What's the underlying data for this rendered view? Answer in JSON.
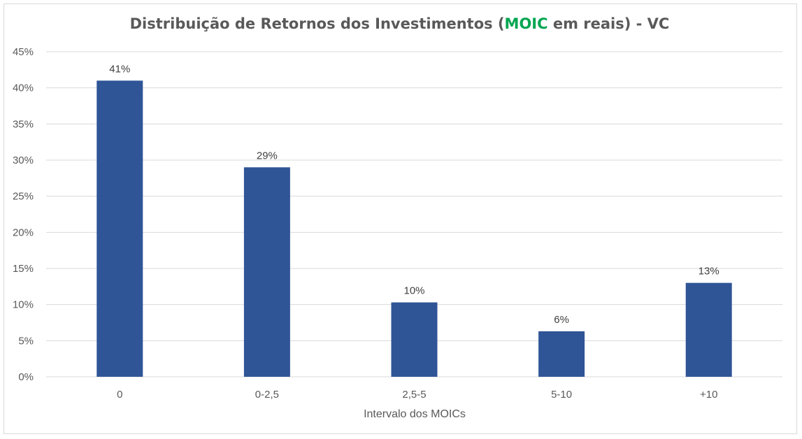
{
  "chart_data": {
    "type": "bar",
    "title_parts": {
      "before": "Distribuição de Retornos dos Investimentos (",
      "highlight": "MOIC",
      "after": " em reais) - VC"
    },
    "xlabel": "Intervalo dos MOICs",
    "ylabel": "",
    "categories": [
      "0",
      "0-2,5",
      "2,5-5",
      "5-10",
      "+10"
    ],
    "values": [
      41,
      29,
      10.3,
      6.3,
      13
    ],
    "value_labels": [
      "41%",
      "29%",
      "10%",
      "6%",
      "13%"
    ],
    "ylim": [
      0,
      45
    ],
    "yticks": [
      0,
      5,
      10,
      15,
      20,
      25,
      30,
      35,
      40,
      45
    ],
    "ytick_labels": [
      "0%",
      "5%",
      "10%",
      "15%",
      "20%",
      "25%",
      "30%",
      "35%",
      "40%",
      "45%"
    ],
    "grid": true,
    "legend": "none",
    "colors": {
      "bar": "#2f5597",
      "highlight": "#00a550",
      "grid": "#d9d9d9",
      "text": "#595959"
    }
  }
}
